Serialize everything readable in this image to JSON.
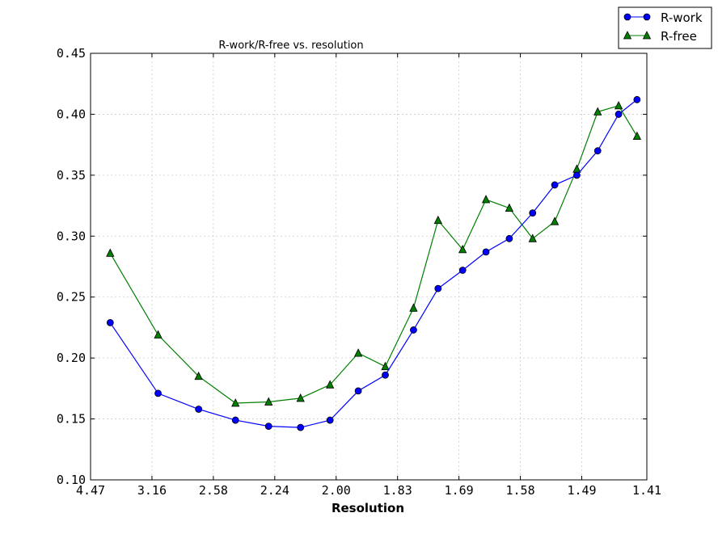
{
  "chart_data": {
    "type": "line",
    "title": "R-work/R-free vs. resolution",
    "xlabel": "Resolution",
    "ylabel": "",
    "x_tick_labels": [
      "4.47",
      "3.16",
      "2.58",
      "2.24",
      "2.00",
      "1.83",
      "1.69",
      "1.58",
      "1.49",
      "1.41"
    ],
    "y_tick_labels": [
      "0.10",
      "0.15",
      "0.20",
      "0.25",
      "0.30",
      "0.35",
      "0.40",
      "0.45"
    ],
    "ylim": [
      0.1,
      0.45
    ],
    "xlim": [
      0.05,
      0.503
    ],
    "x_scale": "1/d^2",
    "x_tick_values": [
      0.05,
      0.1,
      0.15,
      0.2,
      0.25,
      0.3,
      0.35,
      0.4,
      0.45,
      0.503
    ],
    "y_tick_values": [
      0.1,
      0.15,
      0.2,
      0.25,
      0.3,
      0.35,
      0.4,
      0.45
    ],
    "grid": true,
    "legend_position": "top-right outside",
    "x": [
      0.066,
      0.105,
      0.138,
      0.168,
      0.195,
      0.221,
      0.245,
      0.268,
      0.29,
      0.313,
      0.333,
      0.353,
      0.372,
      0.391,
      0.41,
      0.428,
      0.446,
      0.463,
      0.48,
      0.495
    ],
    "series": [
      {
        "name": "R-work",
        "color": "#0000ff",
        "marker": "circle",
        "values": [
          0.229,
          0.171,
          0.158,
          0.149,
          0.144,
          0.143,
          0.149,
          0.173,
          0.186,
          0.223,
          0.257,
          0.272,
          0.287,
          0.298,
          0.319,
          0.342,
          0.35,
          0.37,
          0.4,
          0.412
        ]
      },
      {
        "name": "R-free",
        "color": "#007f00",
        "marker": "triangle",
        "values": [
          0.286,
          0.219,
          0.185,
          0.163,
          0.164,
          0.167,
          0.178,
          0.204,
          0.193,
          0.241,
          0.313,
          0.289,
          0.33,
          0.323,
          0.298,
          0.312,
          0.355,
          0.402,
          0.407,
          0.382
        ]
      }
    ]
  }
}
